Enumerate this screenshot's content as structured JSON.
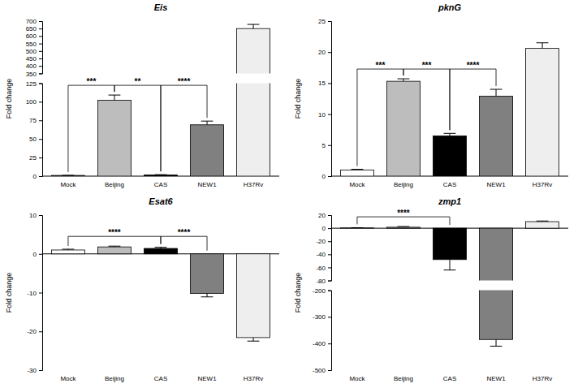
{
  "chart_data": [
    {
      "type": "bar",
      "title": "Eis",
      "y_label": "Fold change",
      "categories": [
        "Mock",
        "Beijing",
        "CAS",
        "NEW1",
        "H37Rv"
      ],
      "values": [
        1,
        102,
        1.5,
        69,
        650
      ],
      "errors": [
        0.1,
        7,
        0.5,
        5,
        28
      ],
      "colors": [
        "#ffffff",
        "#bdbdbd",
        "#000000",
        "#808080",
        "#eeeeee"
      ],
      "ylim": [
        0,
        700
      ],
      "axis_break": [
        125,
        350
      ],
      "yticks": [
        0,
        25,
        50,
        75,
        100,
        125,
        350,
        400,
        450,
        500,
        550,
        600,
        650,
        700
      ],
      "brackets": [
        {
          "from": "Mock",
          "to": "Beijing",
          "label": "***"
        },
        {
          "from": "Beijing",
          "to": "CAS",
          "label": "**"
        },
        {
          "from": "CAS",
          "to": "NEW1",
          "label": "****"
        }
      ]
    },
    {
      "type": "bar",
      "title": "pknG",
      "y_label": "Fold change",
      "categories": [
        "Mock",
        "Beijing",
        "CAS",
        "NEW1",
        "H37Rv"
      ],
      "values": [
        1,
        15.3,
        6.5,
        12.9,
        20.6
      ],
      "errors": [
        0.1,
        0.4,
        0.4,
        1.1,
        0.9
      ],
      "colors": [
        "#ffffff",
        "#bdbdbd",
        "#000000",
        "#808080",
        "#eeeeee"
      ],
      "ylim": [
        0,
        25
      ],
      "yticks": [
        0,
        5,
        10,
        15,
        20,
        25
      ],
      "brackets": [
        {
          "from": "Mock",
          "to": "Beijing",
          "label": "***"
        },
        {
          "from": "Beijing",
          "to": "CAS",
          "label": "***"
        },
        {
          "from": "CAS",
          "to": "NEW1",
          "label": "****"
        }
      ]
    },
    {
      "type": "bar",
      "title": "Esat6",
      "y_label": "Fold change",
      "categories": [
        "Mock",
        "Beijing",
        "CAS",
        "NEW1",
        "H37Rv"
      ],
      "values": [
        1,
        1.8,
        1.4,
        -10.2,
        -21.6
      ],
      "errors": [
        0.2,
        0.2,
        0.3,
        0.9,
        0.9
      ],
      "colors": [
        "#ffffff",
        "#bdbdbd",
        "#000000",
        "#808080",
        "#eeeeee"
      ],
      "ylim": [
        -30,
        10
      ],
      "yticks": [
        -30,
        -20,
        -10,
        0,
        10
      ],
      "brackets": [
        {
          "from": "Mock",
          "to": "CAS",
          "label": "****"
        },
        {
          "from": "CAS",
          "to": "NEW1",
          "label": "****"
        }
      ]
    },
    {
      "type": "bar",
      "title": "zmp1",
      "y_label": "Fold change",
      "categories": [
        "Mock",
        "Beijing",
        "CAS",
        "NEW1",
        "H37Rv"
      ],
      "values": [
        0.5,
        1.5,
        -48,
        -385,
        10
      ],
      "errors": [
        0.3,
        1,
        16,
        25,
        1
      ],
      "colors": [
        "#ffffff",
        "#bdbdbd",
        "#000000",
        "#808080",
        "#eeeeee"
      ],
      "ylim": [
        -500,
        20
      ],
      "axis_break": [
        -200,
        -80
      ],
      "yticks": [
        -500,
        -400,
        -300,
        -200,
        -80,
        -60,
        -40,
        -20,
        0,
        20
      ],
      "brackets": [
        {
          "from": "Mock",
          "to": "CAS",
          "label": "****"
        }
      ]
    }
  ]
}
